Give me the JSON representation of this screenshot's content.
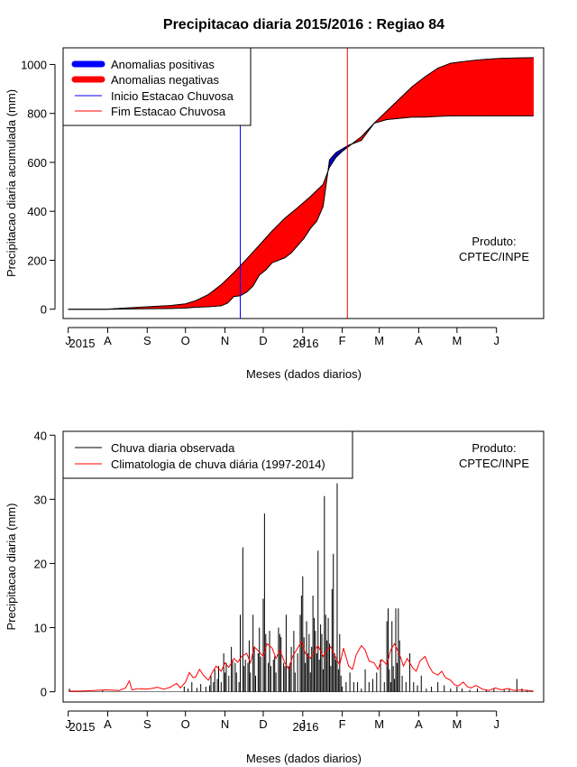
{
  "title": "Precipitacao diaria 2015/2016 : Regiao 84",
  "months": [
    "J",
    "A",
    "S",
    "O",
    "N",
    "D",
    "J",
    "F",
    "M",
    "A",
    "M",
    "J"
  ],
  "years": [
    "2015",
    "2016"
  ],
  "product": {
    "line1": "Produto:",
    "line2": "CPTEC/INPE"
  },
  "chart_data": [
    {
      "type": "area",
      "title": "Precipitacao diaria 2015/2016 : Regiao 84",
      "xlabel": "Meses (dados diarios)",
      "ylabel": "Precipitacao diaria acumulada (mm)",
      "x_unit": "days since 1 July 2015",
      "xlim": [
        -4,
        373
      ],
      "ylim": [
        -38,
        1068
      ],
      "yticks": [
        0,
        200,
        400,
        600,
        800,
        1000
      ],
      "month_tick_days": [
        0,
        31,
        62,
        92,
        123,
        153,
        184,
        215,
        244,
        275,
        305,
        336
      ],
      "legend": {
        "placement": "top-left",
        "entries": [
          "Anomalias positivas",
          "Anomalias negativas",
          "Inicio Estacao Chuvosa",
          "Fim Estacao Chuvosa"
        ],
        "colors": [
          "#0000ff",
          "#ff0000",
          "#0000ff",
          "#ff0000"
        ]
      },
      "onset_day": 135,
      "end_day": 219,
      "onset_color": "#0000ff",
      "end_color": "#ff0000",
      "positive_color": "#0000cc",
      "negative_color": "#ff0000",
      "series": [
        {
          "name": "Precipitacao observada acumulada",
          "x": [
            0,
            30,
            45,
            62,
            80,
            92,
            100,
            110,
            115,
            120,
            125,
            130,
            135,
            140,
            145,
            150,
            155,
            160,
            165,
            170,
            175,
            180,
            185,
            190,
            195,
            200,
            205,
            210,
            215,
            220,
            225,
            230,
            240,
            250,
            260,
            270,
            280,
            290,
            300,
            310,
            320,
            330,
            340,
            355,
            365
          ],
          "y": [
            0,
            0,
            1,
            2,
            3,
            5,
            8,
            10,
            12,
            14,
            25,
            52,
            55,
            70,
            95,
            140,
            160,
            190,
            200,
            210,
            230,
            260,
            290,
            330,
            360,
            420,
            610,
            640,
            655,
            670,
            680,
            690,
            760,
            775,
            780,
            785,
            785,
            788,
            790,
            790,
            790,
            790,
            790,
            790,
            790
          ]
        },
        {
          "name": "Climatologia acumulada",
          "x": [
            0,
            30,
            45,
            62,
            80,
            92,
            100,
            110,
            120,
            130,
            140,
            150,
            160,
            170,
            180,
            190,
            200,
            205,
            210,
            215,
            220,
            230,
            240,
            250,
            260,
            270,
            280,
            290,
            300,
            310,
            320,
            330,
            340,
            355,
            365
          ],
          "y": [
            0,
            0,
            5,
            10,
            15,
            22,
            35,
            60,
            100,
            150,
            205,
            262,
            320,
            372,
            415,
            460,
            510,
            580,
            620,
            645,
            665,
            705,
            760,
            810,
            860,
            910,
            950,
            985,
            1005,
            1012,
            1018,
            1022,
            1025,
            1027,
            1028
          ]
        }
      ]
    },
    {
      "type": "bar",
      "xlabel": "Meses (dados diarios)",
      "ylabel": "Precipitacao diaria (mm)",
      "x_unit": "days since 1 July 2015",
      "xlim": [
        -4,
        373
      ],
      "ylim": [
        -1.6,
        40.6
      ],
      "yticks": [
        0,
        10,
        20,
        30,
        40
      ],
      "legend": {
        "placement": "top-left",
        "entries": [
          "Chuva diaria observada",
          "Climatologia de chuva diária (1997-2014)"
        ],
        "colors": [
          "#000000",
          "#ff0000"
        ]
      },
      "series": [
        {
          "name": "Chuva diaria observada",
          "type": "bar",
          "color": "#000000",
          "x": [
            1,
            27,
            91,
            94,
            97,
            101,
            104,
            108,
            111,
            112,
            114,
            115,
            117,
            118,
            120,
            122,
            123,
            124,
            126,
            128,
            129,
            131,
            132,
            134,
            135,
            137,
            138,
            139,
            141,
            142,
            143,
            145,
            146,
            147,
            149,
            150,
            151,
            153,
            154,
            155,
            157,
            158,
            159,
            161,
            162,
            163,
            165,
            166,
            167,
            169,
            170,
            171,
            173,
            174,
            175,
            177,
            178,
            180,
            182,
            183,
            184,
            185,
            186,
            187,
            188,
            189,
            190,
            191,
            192,
            193,
            194,
            195,
            196,
            197,
            198,
            199,
            200,
            201,
            202,
            203,
            204,
            205,
            206,
            207,
            208,
            209,
            210,
            211,
            212,
            213,
            214,
            215,
            218,
            221,
            224,
            227,
            230,
            233,
            236,
            239,
            242,
            245,
            248,
            250,
            251,
            252,
            253,
            254,
            255,
            256,
            257,
            258,
            259,
            260,
            262,
            265,
            268,
            271,
            274,
            277,
            281,
            285,
            290,
            295,
            300,
            305,
            309,
            315,
            321,
            328,
            334,
            342,
            346,
            352,
            356,
            360
          ],
          "y": [
            0.5,
            0.3,
            0.8,
            0.5,
            1.5,
            0.6,
            1.2,
            0.8,
            1.0,
            2.5,
            1.5,
            3.5,
            2.0,
            4.0,
            1.5,
            6.0,
            3.0,
            4.5,
            2.5,
            7.0,
            5.0,
            4.5,
            3.0,
            1.5,
            12.0,
            22.5,
            4.0,
            5.0,
            4.5,
            8.0,
            3.0,
            12.0,
            7.0,
            2.5,
            6.0,
            10.0,
            5.5,
            14.5,
            27.8,
            9.0,
            4.5,
            9.5,
            4.0,
            5.0,
            5.5,
            3.0,
            10.0,
            9.0,
            8.5,
            4.5,
            4.0,
            12.0,
            4.0,
            4.5,
            7.0,
            9.5,
            3.0,
            6.0,
            12.0,
            15.0,
            18.0,
            8.5,
            4.5,
            11.0,
            6.0,
            9.0,
            3.0,
            7.0,
            15.0,
            11.5,
            9.5,
            6.0,
            22.0,
            5.0,
            10.5,
            9.0,
            3.5,
            30.5,
            12.0,
            8.0,
            11.5,
            7.5,
            4.0,
            16.0,
            21.5,
            6.0,
            5.0,
            32.5,
            3.5,
            9.0,
            2.5,
            0.8,
            1.5,
            3.0,
            1.5,
            1.5,
            0.5,
            3.5,
            1.5,
            2.0,
            3.0,
            5.0,
            1.5,
            11.0,
            13.0,
            3.5,
            1.5,
            11.0,
            4.0,
            2.0,
            13.0,
            4.5,
            13.0,
            8.0,
            2.5,
            1.5,
            6.0,
            1.5,
            1.0,
            2.5,
            0.5,
            0.8,
            1.5,
            1.0,
            0.5,
            0.8,
            0.5,
            0.3,
            0.5,
            0.3,
            0.5,
            0.3,
            0.5,
            2.0,
            0.5,
            0.3
          ]
        },
        {
          "name": "Climatologia de chuva diária (1997-2014)",
          "type": "line",
          "color": "#ff0000",
          "x": [
            0,
            10,
            20,
            30,
            40,
            45,
            48,
            50,
            55,
            60,
            65,
            70,
            75,
            80,
            85,
            88,
            92,
            95,
            98,
            100,
            103,
            106,
            110,
            113,
            116,
            120,
            123,
            126,
            130,
            133,
            136,
            140,
            143,
            146,
            150,
            153,
            156,
            160,
            163,
            166,
            170,
            173,
            176,
            180,
            183,
            186,
            190,
            193,
            196,
            200,
            203,
            206,
            210,
            213,
            216,
            220,
            223,
            226,
            230,
            233,
            236,
            240,
            243,
            246,
            250,
            253,
            256,
            260,
            263,
            266,
            270,
            273,
            276,
            280,
            283,
            286,
            290,
            293,
            296,
            300,
            303,
            306,
            310,
            313,
            316,
            320,
            325,
            330,
            335,
            340,
            345,
            350,
            355,
            360,
            365
          ],
          "y": [
            0.1,
            0.1,
            0.2,
            0.3,
            0.2,
            0.6,
            1.7,
            0.3,
            0.5,
            0.4,
            0.5,
            0.7,
            0.4,
            0.7,
            1.3,
            0.6,
            1.5,
            3.0,
            2.2,
            2.3,
            3.5,
            2.6,
            1.8,
            3.0,
            4.0,
            3.2,
            4.5,
            3.8,
            5.2,
            4.6,
            5.5,
            6.0,
            4.5,
            7.0,
            6.2,
            5.5,
            7.5,
            6.8,
            5.2,
            6.5,
            4.5,
            3.5,
            5.5,
            6.8,
            7.8,
            6.0,
            5.2,
            6.3,
            7.2,
            5.5,
            6.5,
            7.0,
            5.3,
            4.2,
            6.8,
            4.0,
            3.5,
            5.8,
            7.2,
            6.5,
            4.8,
            4.5,
            3.5,
            5.0,
            4.2,
            6.5,
            7.5,
            5.8,
            4.0,
            5.2,
            3.8,
            3.2,
            4.8,
            5.5,
            4.0,
            3.0,
            2.6,
            3.2,
            2.2,
            1.8,
            1.1,
            0.9,
            1.5,
            0.8,
            0.6,
            1.0,
            0.4,
            0.2,
            0.6,
            0.3,
            0.5,
            0.2,
            0.3,
            0.2,
            0.1
          ]
        }
      ]
    }
  ]
}
